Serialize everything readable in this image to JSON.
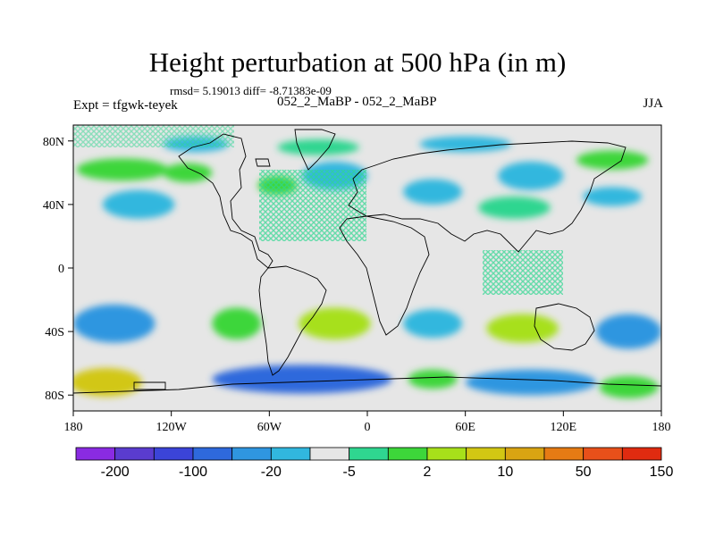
{
  "title": "Height perturbation at 500 hPa (in m)",
  "stats": "rmsd= 5.19013 diff= -8.71383e-09",
  "experiment": "Expt = tfgwk-teyek",
  "difference_label": "052_2_MaBP - 052_2_MaBP",
  "season": "JJA",
  "lon_ticks": [
    {
      "value": -180,
      "label": "180"
    },
    {
      "value": -120,
      "label": "120W"
    },
    {
      "value": -60,
      "label": "60W"
    },
    {
      "value": 0,
      "label": "0"
    },
    {
      "value": 60,
      "label": "60E"
    },
    {
      "value": 120,
      "label": "120E"
    },
    {
      "value": 180,
      "label": "180"
    }
  ],
  "lat_ticks": [
    {
      "value": 80,
      "label": "80N"
    },
    {
      "value": 40,
      "label": "40N"
    },
    {
      "value": 0,
      "label": "0"
    },
    {
      "value": -40,
      "label": "40S"
    },
    {
      "value": -80,
      "label": "80S"
    }
  ],
  "colorbar": {
    "colors": [
      "#8a2be2",
      "#5a3ccf",
      "#3b44d8",
      "#2e69dc",
      "#2f96e0",
      "#31b7de",
      "#e6e6e6",
      "#2fd690",
      "#3dd63a",
      "#a7e01a",
      "#d2c713",
      "#d9a412",
      "#e67b14",
      "#e8501a",
      "#e02b10"
    ],
    "labels": [
      {
        "boundary": 1,
        "text": "-200"
      },
      {
        "boundary": 3,
        "text": "-100"
      },
      {
        "boundary": 5,
        "text": "-20"
      },
      {
        "boundary": 7,
        "text": "-5"
      },
      {
        "boundary": 9,
        "text": "2"
      },
      {
        "boundary": 11,
        "text": "10"
      },
      {
        "boundary": 13,
        "text": "50"
      },
      {
        "boundary": 15,
        "text": "150"
      }
    ]
  },
  "regions": [
    {
      "name": "nh-arctic-blue-a",
      "lon": -105,
      "lat": 78,
      "rlon": 20,
      "rlat": 5,
      "level": 5
    },
    {
      "name": "nh-green-band-west",
      "lon": -150,
      "lat": 62,
      "rlon": 28,
      "rlat": 7,
      "level": 8
    },
    {
      "name": "nh-green-east-pacific",
      "lon": -110,
      "lat": 60,
      "rlon": 15,
      "rlat": 6,
      "level": 8
    },
    {
      "name": "nh-blue-pacific",
      "lon": -140,
      "lat": 40,
      "rlon": 22,
      "rlat": 9,
      "level": 5
    },
    {
      "name": "nh-green-n-america",
      "lon": -55,
      "lat": 52,
      "rlon": 12,
      "rlat": 6,
      "level": 8
    },
    {
      "name": "nh-green-arctic-mid",
      "lon": -30,
      "lat": 76,
      "rlon": 25,
      "rlat": 5,
      "level": 7
    },
    {
      "name": "nh-blue-atlantic",
      "lon": -20,
      "lat": 58,
      "rlon": 20,
      "rlat": 9,
      "level": 5
    },
    {
      "name": "nh-blue-arctic-east",
      "lon": 60,
      "lat": 78,
      "rlon": 28,
      "rlat": 5,
      "level": 5
    },
    {
      "name": "nh-blue-europe",
      "lon": 40,
      "lat": 48,
      "rlon": 18,
      "rlat": 8,
      "level": 5
    },
    {
      "name": "nh-blue-asia",
      "lon": 100,
      "lat": 58,
      "rlon": 20,
      "rlat": 9,
      "level": 5
    },
    {
      "name": "nh-green-asia",
      "lon": 90,
      "lat": 38,
      "rlon": 22,
      "rlat": 7,
      "level": 7
    },
    {
      "name": "nh-green-far-east",
      "lon": 150,
      "lat": 68,
      "rlon": 22,
      "rlat": 6,
      "level": 8
    },
    {
      "name": "nh-blue-nw-pacific",
      "lon": 150,
      "lat": 45,
      "rlon": 18,
      "rlat": 6,
      "level": 5
    },
    {
      "name": "sh-blue-south-pacific",
      "lon": -155,
      "lat": -35,
      "rlon": 25,
      "rlat": 12,
      "level": 4
    },
    {
      "name": "sh-green-s-america",
      "lon": -80,
      "lat": -35,
      "rlon": 15,
      "rlat": 10,
      "level": 8
    },
    {
      "name": "sh-yellowgreen-atlantic",
      "lon": -20,
      "lat": -35,
      "rlon": 22,
      "rlat": 10,
      "level": 9
    },
    {
      "name": "sh-blue-indian",
      "lon": 40,
      "lat": -35,
      "rlon": 18,
      "rlat": 9,
      "level": 5
    },
    {
      "name": "sh-yellowgreen-indian",
      "lon": 95,
      "lat": -38,
      "rlon": 22,
      "rlat": 9,
      "level": 9
    },
    {
      "name": "sh-blue-southwest-pacific",
      "lon": 160,
      "lat": -40,
      "rlon": 20,
      "rlat": 11,
      "level": 4
    },
    {
      "name": "sh-blue-antarctic-ring",
      "lon": -40,
      "lat": -70,
      "rlon": 55,
      "rlat": 9,
      "level": 3
    },
    {
      "name": "sh-blue-antarctic-east",
      "lon": 100,
      "lat": -72,
      "rlon": 40,
      "rlat": 8,
      "level": 4
    },
    {
      "name": "sh-yellow-antarctic-west",
      "lon": -160,
      "lat": -72,
      "rlon": 22,
      "rlat": 9,
      "level": 10
    },
    {
      "name": "sh-green-antarctic-mid",
      "lon": 40,
      "lat": -70,
      "rlon": 15,
      "rlat": 6,
      "level": 8
    },
    {
      "name": "sh-green-antarctic-far-east",
      "lon": 160,
      "lat": -75,
      "rlon": 18,
      "rlat": 7,
      "level": 8
    }
  ]
}
